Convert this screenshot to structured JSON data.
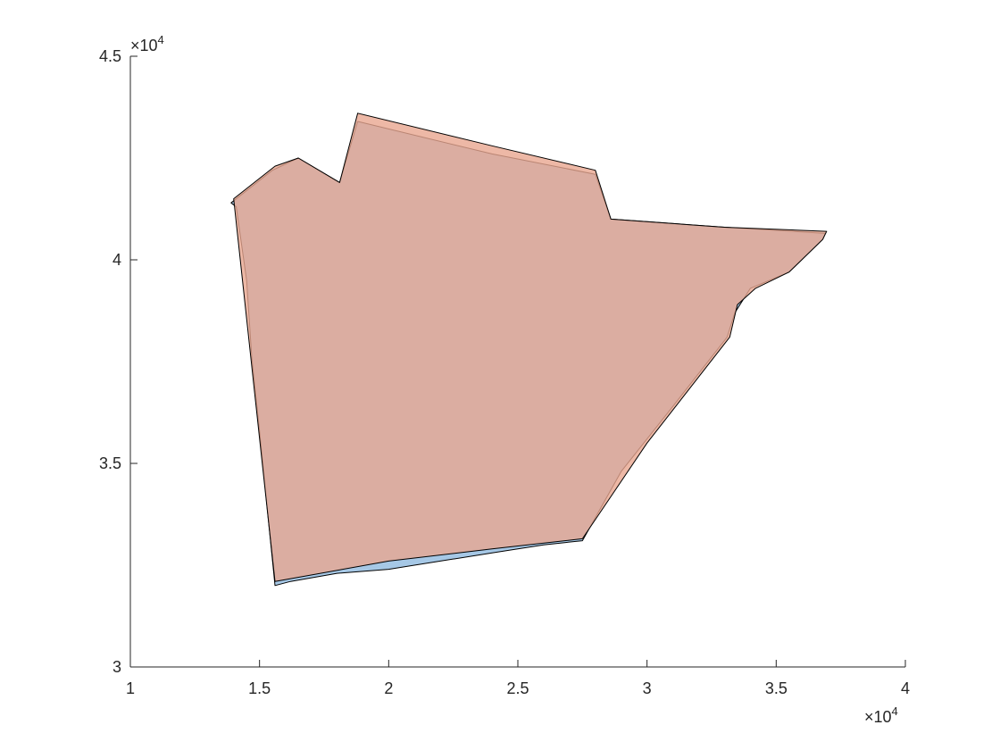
{
  "chart_data": {
    "type": "area",
    "xlim": [
      10000,
      40000
    ],
    "ylim": [
      30000,
      45000
    ],
    "x_ticks": [
      10000,
      15000,
      20000,
      25000,
      30000,
      35000,
      40000
    ],
    "y_ticks": [
      30000,
      35000,
      40000,
      45000
    ],
    "x_tick_labels": [
      "1",
      "1.5",
      "2",
      "2.5",
      "3",
      "3.5",
      "4"
    ],
    "y_tick_labels": [
      "3",
      "3.5",
      "4",
      "4.5"
    ],
    "x_exponent_label": "×10",
    "y_exponent_label": "×10",
    "exponent": "4",
    "grid": false,
    "series": [
      {
        "color": "#a6c8e6",
        "points": [
          [
            13900,
            41400
          ],
          [
            14100,
            41300
          ],
          [
            14500,
            39500
          ],
          [
            14700,
            37600
          ],
          [
            15000,
            35800
          ],
          [
            15300,
            33900
          ],
          [
            15600,
            32000
          ],
          [
            16200,
            32100
          ],
          [
            18000,
            32300
          ],
          [
            20000,
            32400
          ],
          [
            22000,
            32600
          ],
          [
            24000,
            32800
          ],
          [
            26000,
            33000
          ],
          [
            27500,
            33100
          ],
          [
            29000,
            34800
          ],
          [
            31000,
            36400
          ],
          [
            33100,
            38100
          ],
          [
            33400,
            38700
          ],
          [
            34000,
            39300
          ],
          [
            35500,
            39700
          ],
          [
            36800,
            40500
          ],
          [
            36900,
            40650
          ],
          [
            33000,
            40800
          ],
          [
            28600,
            41000
          ],
          [
            28000,
            42100
          ],
          [
            24000,
            42600
          ],
          [
            18800,
            43400
          ],
          [
            18100,
            41900
          ],
          [
            16500,
            42500
          ],
          [
            15500,
            42200
          ]
        ]
      },
      {
        "color": "#e8a690",
        "points": [
          [
            14000,
            41500
          ],
          [
            15600,
            32100
          ],
          [
            20000,
            32600
          ],
          [
            24000,
            32900
          ],
          [
            27500,
            33150
          ],
          [
            30000,
            35500
          ],
          [
            33200,
            38100
          ],
          [
            33500,
            38900
          ],
          [
            34200,
            39300
          ],
          [
            35500,
            39700
          ],
          [
            36800,
            40500
          ],
          [
            36950,
            40700
          ],
          [
            33000,
            40800
          ],
          [
            28600,
            41000
          ],
          [
            28000,
            42200
          ],
          [
            24000,
            42800
          ],
          [
            18800,
            43600
          ],
          [
            18100,
            41900
          ],
          [
            16500,
            42500
          ],
          [
            15600,
            42300
          ]
        ]
      }
    ]
  }
}
